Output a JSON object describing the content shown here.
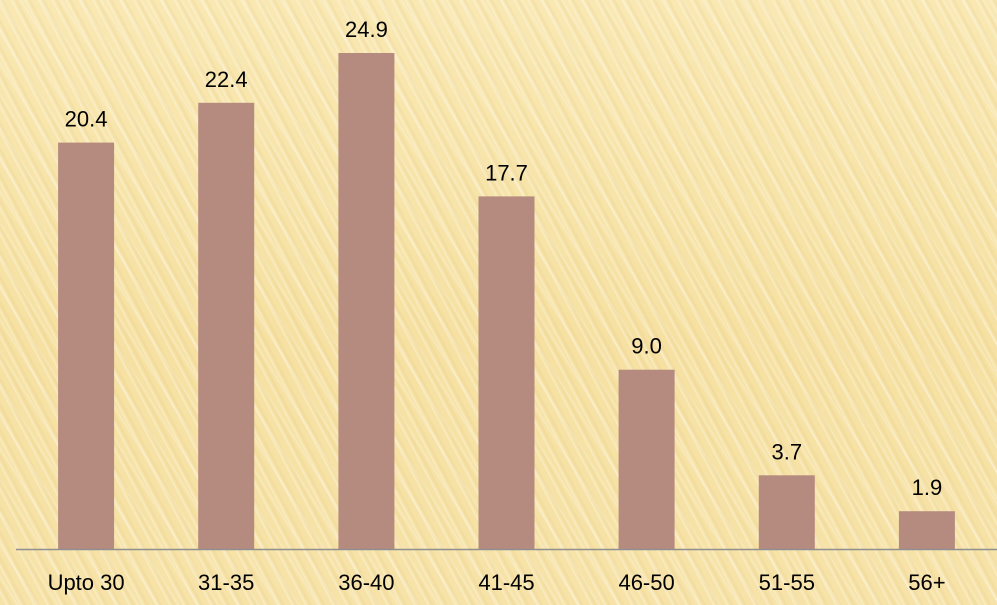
{
  "chart_data": {
    "type": "bar",
    "title": "",
    "xlabel": "",
    "ylabel": "",
    "categories": [
      "Upto 30",
      "31-35",
      "36-40",
      "41-45",
      "46-50",
      "51-55",
      "56+"
    ],
    "values": [
      20.4,
      22.4,
      24.9,
      17.7,
      9.0,
      3.7,
      1.9
    ],
    "value_labels": [
      "20.4",
      "22.4",
      "24.9",
      "17.7",
      "9.0",
      "3.7",
      "1.9"
    ],
    "ylim": [
      0,
      24.9
    ],
    "grid": false,
    "legend": "none",
    "colors": {
      "bar": "#b58b80",
      "axis": "#8f8f8f",
      "text": "#000000"
    }
  }
}
